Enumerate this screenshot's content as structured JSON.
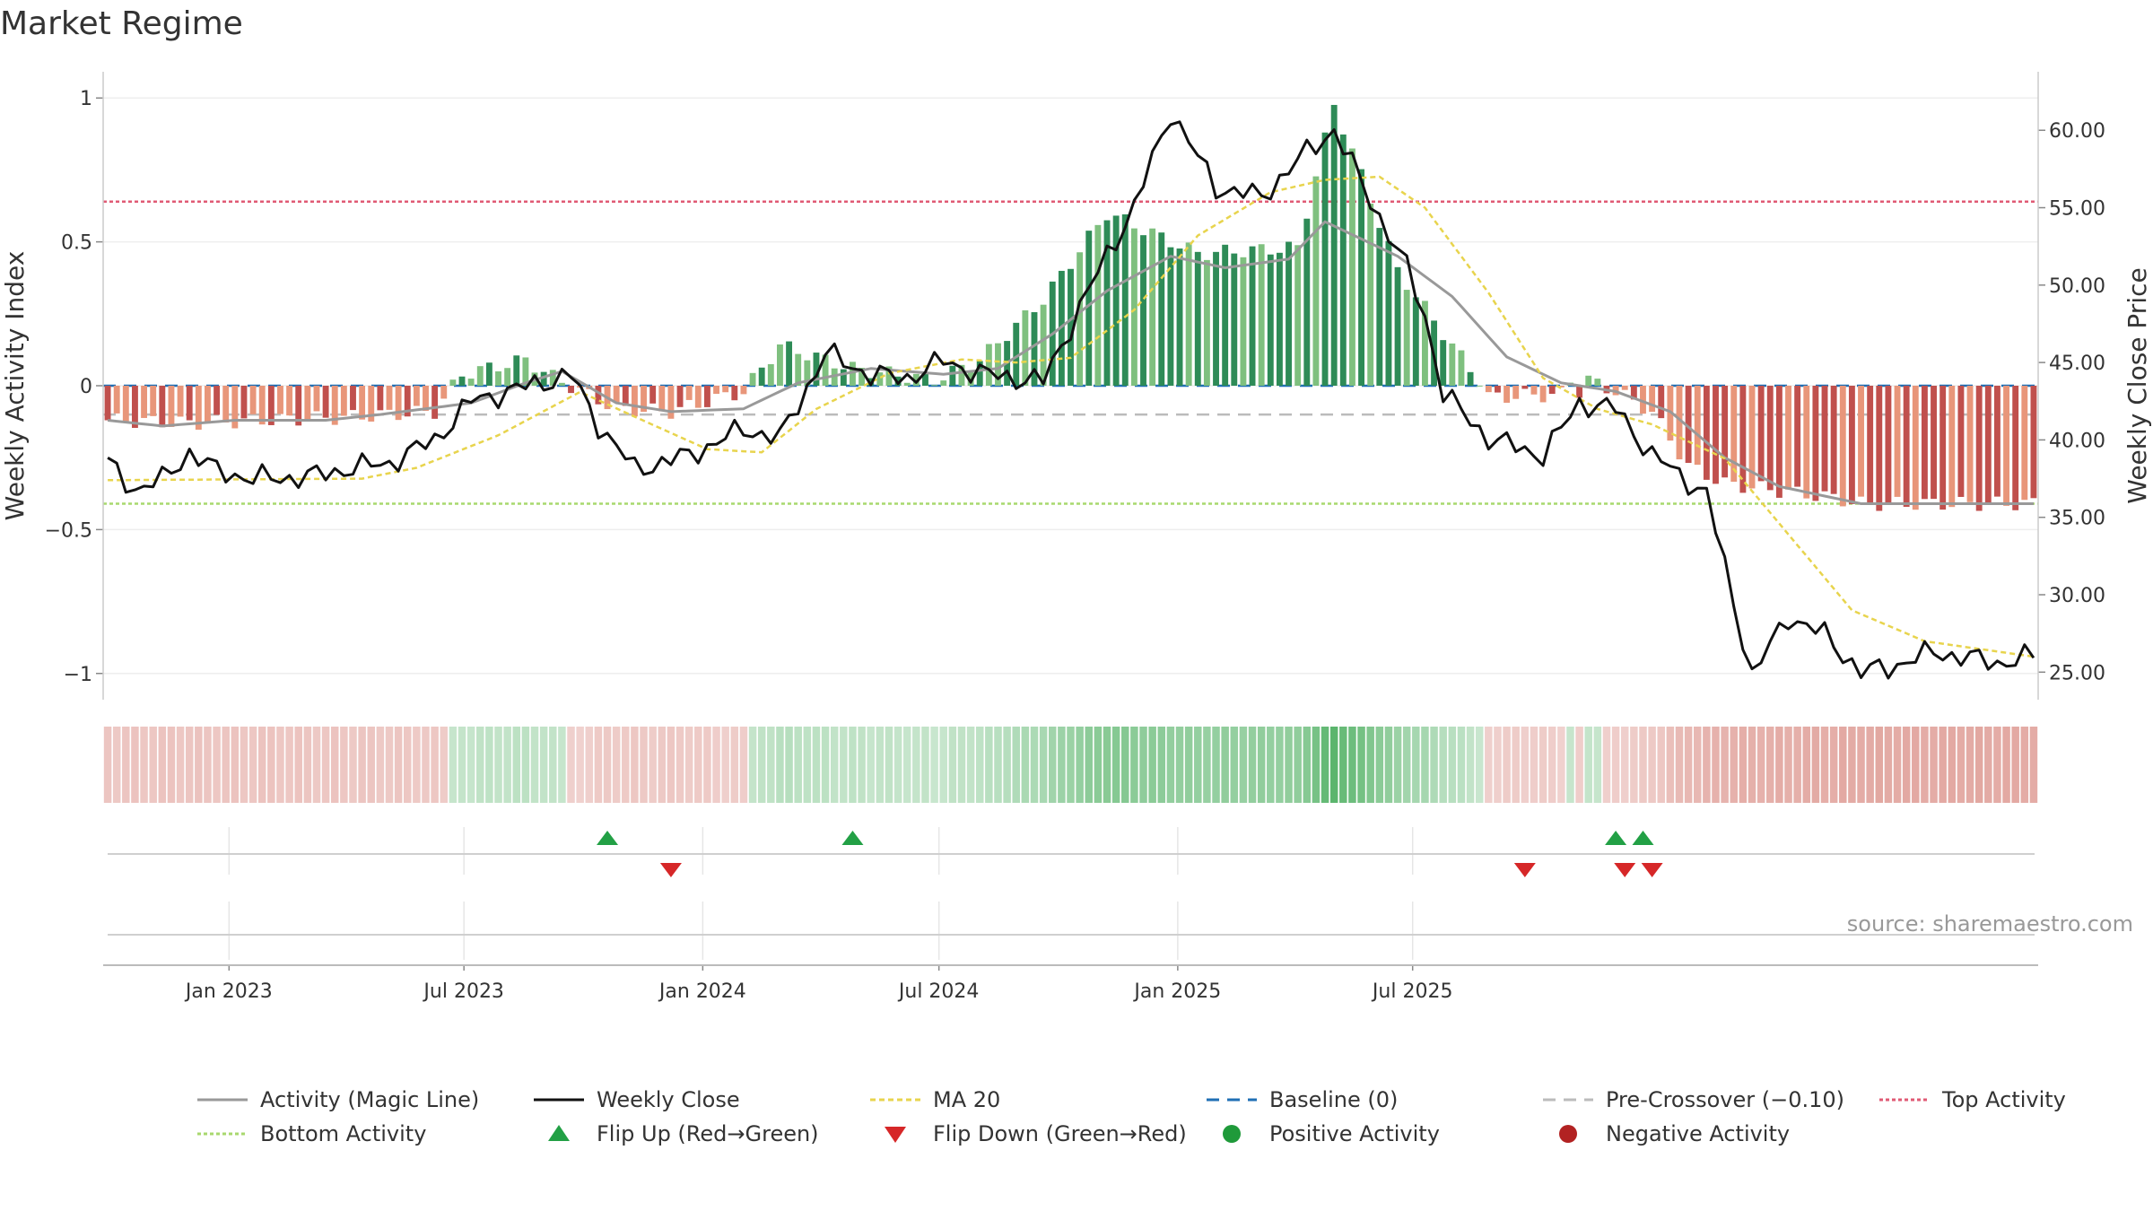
{
  "title": "Market Regime",
  "source": "source: sharemaestro.com",
  "colors": {
    "pos_dark": "#2e8b57",
    "pos_light": "#7fc07f",
    "neg_dark": "#c0504d",
    "neg_light": "#e8967a",
    "magic": "#999999",
    "close": "#111111",
    "ma": "#e8d44d",
    "baseline": "#1f6fb5",
    "pre": "#bbbbbb",
    "top": "#e05a74",
    "bottom": "#a8d86e",
    "flip_up": "#22a045",
    "flip_down": "#d62728",
    "pos_marker": "#1f9a3a",
    "neg_marker": "#b22222"
  },
  "chart_data": {
    "type": "bar+line",
    "title": "Market Regime",
    "frequency": "weekly",
    "x_start": "2022-09-26",
    "x_ticks": [
      "Jan 2023",
      "Jul 2023",
      "Jan 2024",
      "Jul 2024",
      "Jan 2025",
      "Jul 2025"
    ],
    "left_axis": {
      "label": "Weekly Activity Index",
      "ylim": [
        -1.06,
        1.06
      ],
      "ticks": [
        1,
        0.5,
        0,
        -0.5,
        -1
      ],
      "tick_labels": [
        "1",
        "0.5",
        "0",
        "−0.5",
        "−1"
      ]
    },
    "right_axis": {
      "label": "Weekly Close Price",
      "ylim": [
        23.8,
        63.2
      ],
      "ticks": [
        60,
        55,
        50,
        45,
        40,
        35,
        30,
        25
      ],
      "tick_labels": [
        "60.00",
        "55.00",
        "50.00",
        "45.00",
        "40.00",
        "35.00",
        "30.00",
        "25.00"
      ]
    },
    "top_activity": 0.64,
    "bottom_activity": -0.41,
    "baseline": 0,
    "pre_crossover": -0.1,
    "activity_keys": [
      [
        0,
        -0.12
      ],
      [
        9,
        -0.13
      ],
      [
        17,
        -0.12
      ],
      [
        26,
        -0.11
      ],
      [
        36,
        -0.09
      ],
      [
        39,
        0.04
      ],
      [
        46,
        0.09
      ],
      [
        49,
        0.03
      ],
      [
        56,
        -0.08
      ],
      [
        62,
        -0.09
      ],
      [
        70,
        -0.02
      ],
      [
        74,
        0.14
      ],
      [
        82,
        0.06
      ],
      [
        91,
        0.02
      ],
      [
        96,
        0.09
      ],
      [
        103,
        0.3
      ],
      [
        110,
        0.6
      ],
      [
        120,
        0.46
      ],
      [
        131,
        0.48
      ],
      [
        135,
        0.98
      ],
      [
        142,
        0.4
      ],
      [
        148,
        0.14
      ],
      [
        151,
        0.02
      ],
      [
        152,
        -0.04
      ],
      [
        160,
        -0.03
      ],
      [
        161,
        0.02
      ],
      [
        162,
        -0.02
      ],
      [
        163,
        0.02
      ],
      [
        166,
        -0.02
      ],
      [
        170,
        -0.09
      ],
      [
        174,
        -0.28
      ],
      [
        178,
        -0.34
      ],
      [
        190,
        -0.39
      ],
      [
        193,
        -0.41
      ]
    ],
    "magic_keys": [
      [
        0,
        -0.12
      ],
      [
        6,
        -0.14
      ],
      [
        14,
        -0.12
      ],
      [
        24,
        -0.12
      ],
      [
        30,
        -0.1
      ],
      [
        40,
        -0.06
      ],
      [
        46,
        0.01
      ],
      [
        50,
        0.05
      ],
      [
        56,
        -0.06
      ],
      [
        62,
        -0.09
      ],
      [
        70,
        -0.08
      ],
      [
        76,
        0.01
      ],
      [
        84,
        0.06
      ],
      [
        92,
        0.04
      ],
      [
        98,
        0.06
      ],
      [
        104,
        0.18
      ],
      [
        110,
        0.33
      ],
      [
        117,
        0.45
      ],
      [
        123,
        0.41
      ],
      [
        130,
        0.44
      ],
      [
        134,
        0.57
      ],
      [
        142,
        0.45
      ],
      [
        148,
        0.31
      ],
      [
        154,
        0.1
      ],
      [
        160,
        0.01
      ],
      [
        166,
        -0.02
      ],
      [
        172,
        -0.09
      ],
      [
        178,
        -0.25
      ],
      [
        184,
        -0.35
      ],
      [
        193,
        -0.41
      ]
    ],
    "close_keys": [
      [
        0,
        38.5
      ],
      [
        3,
        36.8
      ],
      [
        6,
        37.4
      ],
      [
        9,
        39.2
      ],
      [
        12,
        38.0
      ],
      [
        16,
        37.5
      ],
      [
        22,
        37.6
      ],
      [
        27,
        38.2
      ],
      [
        31,
        38.5
      ],
      [
        36,
        40.0
      ],
      [
        40,
        42.5
      ],
      [
        51,
        44.2
      ],
      [
        54,
        41.0
      ],
      [
        58,
        38.1
      ],
      [
        64,
        39.0
      ],
      [
        70,
        40.7
      ],
      [
        74,
        40.1
      ],
      [
        79,
        45.6
      ],
      [
        84,
        44.2
      ],
      [
        88,
        44.0
      ],
      [
        92,
        45.1
      ],
      [
        96,
        44.3
      ],
      [
        100,
        44.0
      ],
      [
        103,
        43.8
      ],
      [
        107,
        48.5
      ],
      [
        110,
        52.0
      ],
      [
        113,
        55.0
      ],
      [
        117,
        61.2
      ],
      [
        122,
        56.3
      ],
      [
        127,
        55.7
      ],
      [
        132,
        58.6
      ],
      [
        135,
        60.0
      ],
      [
        139,
        55.5
      ],
      [
        143,
        51.1
      ],
      [
        145,
        48.0
      ],
      [
        147,
        43.0
      ],
      [
        152,
        40.1
      ],
      [
        158,
        39.0
      ],
      [
        162,
        42.4
      ],
      [
        166,
        42.0
      ],
      [
        170,
        39.0
      ],
      [
        176,
        36.5
      ],
      [
        181,
        24.8
      ],
      [
        185,
        28.6
      ],
      [
        189,
        27.4
      ],
      [
        193,
        25.0
      ],
      [
        196,
        25.3
      ],
      [
        201,
        26.3
      ],
      [
        208,
        25.6
      ],
      [
        212,
        26.0
      ]
    ],
    "ma_keys": [
      [
        0,
        37.4
      ],
      [
        28,
        37.5
      ],
      [
        34,
        38.2
      ],
      [
        43,
        40.3
      ],
      [
        52,
        43.1
      ],
      [
        58,
        41.5
      ],
      [
        66,
        39.4
      ],
      [
        72,
        39.2
      ],
      [
        78,
        42.0
      ],
      [
        86,
        44.3
      ],
      [
        94,
        45.2
      ],
      [
        100,
        45.0
      ],
      [
        106,
        45.3
      ],
      [
        113,
        48.4
      ],
      [
        120,
        53.2
      ],
      [
        128,
        56.0
      ],
      [
        134,
        56.8
      ],
      [
        140,
        57.0
      ],
      [
        145,
        55.0
      ],
      [
        152,
        49.5
      ],
      [
        158,
        44.0
      ],
      [
        164,
        42.0
      ],
      [
        170,
        41.0
      ],
      [
        178,
        38.8
      ],
      [
        186,
        33.2
      ],
      [
        192,
        29.0
      ],
      [
        200,
        27.0
      ],
      [
        212,
        26.0
      ]
    ],
    "flip_up_weeks": [
      55,
      82,
      166,
      169
    ],
    "flip_down_weeks": [
      62,
      156,
      167,
      170
    ],
    "legend": [
      {
        "label": "Activity (Magic Line)",
        "kind": "line",
        "color": "magic",
        "dash": ""
      },
      {
        "label": "Weekly Close",
        "kind": "line",
        "color": "close",
        "dash": ""
      },
      {
        "label": "MA 20",
        "kind": "line",
        "color": "ma",
        "dash": "6 4"
      },
      {
        "label": "Baseline (0)",
        "kind": "line",
        "color": "baseline",
        "dash": "14 9"
      },
      {
        "label": "Pre-Crossover (−0.10)",
        "kind": "line",
        "color": "pre",
        "dash": "14 9"
      },
      {
        "label": "Top Activity",
        "kind": "line",
        "color": "top",
        "dash": "4 3"
      },
      {
        "label": "Bottom Activity",
        "kind": "line",
        "color": "bottom",
        "dash": "4 3"
      },
      {
        "label": "Flip Up (Red→Green)",
        "kind": "tri-up",
        "color": "flip_up",
        "dash": ""
      },
      {
        "label": "Flip Down (Green→Red)",
        "kind": "tri-down",
        "color": "flip_down",
        "dash": ""
      },
      {
        "label": "Positive Activity",
        "kind": "dot",
        "color": "pos_marker",
        "dash": ""
      },
      {
        "label": "Negative Activity",
        "kind": "dot",
        "color": "neg_marker",
        "dash": ""
      }
    ]
  }
}
